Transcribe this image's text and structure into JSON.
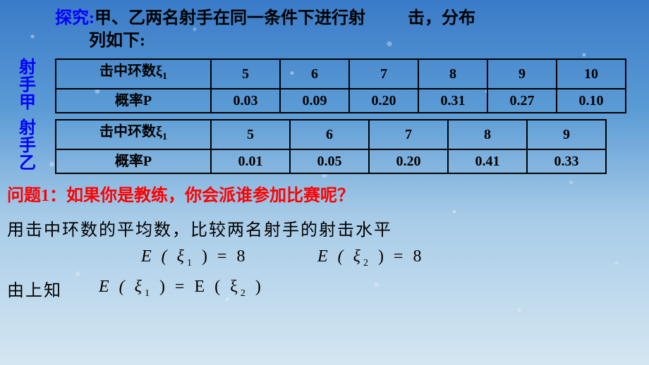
{
  "intro": {
    "label": "探究:",
    "line1_first": "甲、乙两名射手在同一条件下进行射",
    "line1_tail": "击，分布",
    "line2": "列如下:"
  },
  "shooterA": {
    "label_chars": [
      "射",
      "手",
      "甲"
    ],
    "label_color": "#0000ff",
    "table": {
      "row1_label": "击中环数ξ₁",
      "row2_label": "概率P",
      "columns": [
        "5",
        "6",
        "7",
        "8",
        "9",
        "10"
      ],
      "probs": [
        "0.03",
        "0.09",
        "0.20",
        "0.31",
        "0.27",
        "0.10"
      ],
      "border_color": "#000000",
      "cell_fontsize": 20
    }
  },
  "shooterB": {
    "label_chars": [
      "射",
      "手",
      "乙"
    ],
    "label_color": "#0000ff",
    "table": {
      "row1_label": "击中环数ξ₁",
      "row2_label": "概率P",
      "columns": [
        "5",
        "6",
        "7",
        "8",
        "9"
      ],
      "probs": [
        "0.01",
        "0.05",
        "0.20",
        "0.41",
        "0.33"
      ],
      "border_color": "#000000",
      "cell_fontsize": 20
    }
  },
  "question1": {
    "text": "问题1：如果你是教练，你会派谁参加比赛呢？",
    "color": "#ff0000"
  },
  "line_avg": "用击中环数的平均数，比较两名射手的射击水平",
  "equations": {
    "e1_lhs": "E ( ξ",
    "e1_sub": "1",
    "e1_mid": " ) = ",
    "e1_rhs": "8",
    "e2_lhs": "E   ( ξ",
    "e2_sub": "2",
    "e2_mid": " )  =  ",
    "e2_rhs": "8"
  },
  "final": {
    "label": "由上知",
    "eq_l": "E ( ξ",
    "eq_sub1": "1",
    "eq_mid": " )  =  E ( ξ",
    "eq_sub2": "2",
    "eq_r": " )"
  },
  "style": {
    "bg_gradient": [
      "#3a7bc8",
      "#5b9bd5",
      "#a8cce8",
      "#d4e6f1"
    ],
    "text_black": "#000000",
    "text_red": "#ff0000",
    "text_blue": "#0000ff"
  }
}
